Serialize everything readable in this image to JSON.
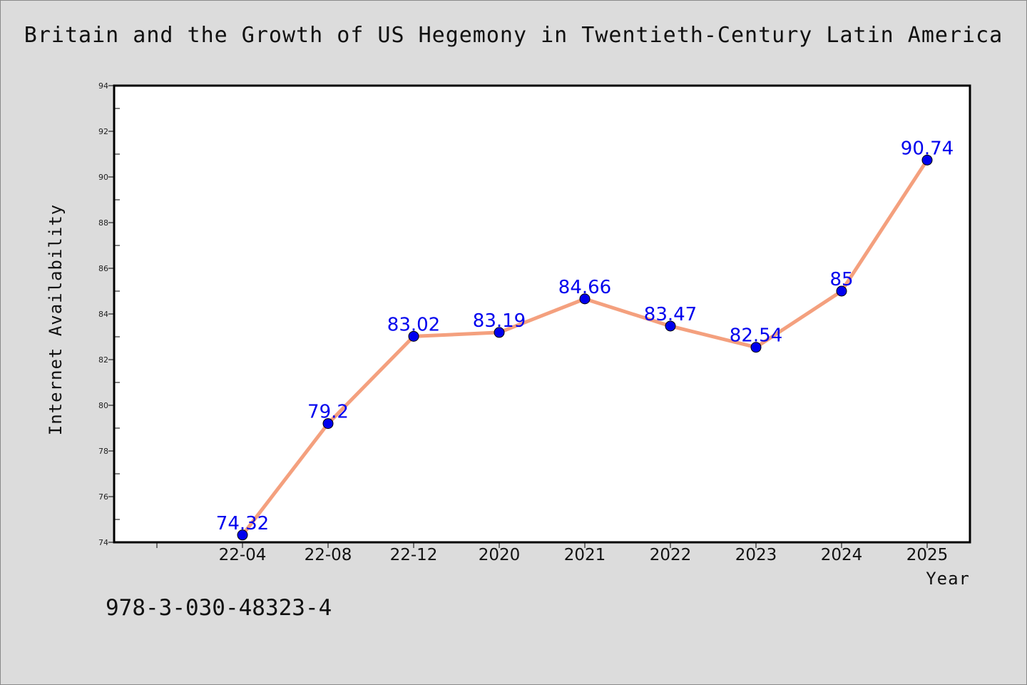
{
  "title": "Britain and the Growth of US Hegemony in Twentieth-Century Latin America",
  "footer_text": "978-3-030-48323-4",
  "chart_data": {
    "type": "line",
    "title": "Britain and the Growth of US Hegemony in Twentieth-Century Latin America",
    "xlabel": "Year",
    "ylabel": "Internet Availability",
    "categories": [
      "22-04",
      "22-08",
      "22-12",
      "2020",
      "2021",
      "2022",
      "2023",
      "2024",
      "2025"
    ],
    "values": [
      74.32,
      79.2,
      83.02,
      83.19,
      84.66,
      83.47,
      82.54,
      85,
      90.74
    ],
    "data_labels": [
      "74.32",
      "79.2",
      "83.02",
      "83.19",
      "84.66",
      "83.47",
      "82.54",
      "85",
      "90.74"
    ],
    "y_ticks": [
      "74",
      "76",
      "78",
      "80",
      "82",
      "84",
      "86",
      "88",
      "90",
      "92",
      "94"
    ],
    "ylim": [
      74,
      94
    ],
    "grid": false,
    "legend": "none",
    "colors": {
      "line": "#f4a07e",
      "marker": "#0000ee",
      "data_label": "#0000ee",
      "background": "#dcdcdc",
      "plot_background": "#ffffff"
    }
  }
}
